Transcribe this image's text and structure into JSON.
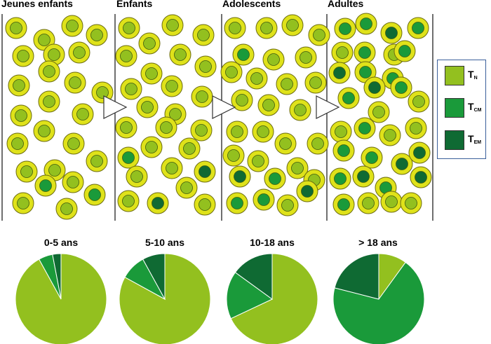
{
  "panels": [
    {
      "label": "Jeunes enfants"
    },
    {
      "label": "Enfants"
    },
    {
      "label": "Adolescents"
    },
    {
      "label": "Adultes"
    }
  ],
  "legend": [
    {
      "main": "T",
      "sub": "N",
      "color": "#93c01f"
    },
    {
      "main": "T",
      "sub": "CM",
      "color": "#1a9a3a"
    },
    {
      "main": "T",
      "sub": "EM",
      "color": "#0f6a33"
    }
  ],
  "chart_data": {
    "type": "pie",
    "categories": [
      "TN",
      "TCM",
      "TEM"
    ],
    "colors": {
      "TN": "#93c01f",
      "TCM": "#1a9a3a",
      "TEM": "#0f6a33",
      "cell_ring": "#dfe21a"
    },
    "pies": [
      {
        "title": "0-5 ans",
        "values": [
          92,
          5,
          3
        ]
      },
      {
        "title": "5-10 ans",
        "values": [
          83,
          9,
          8
        ]
      },
      {
        "title": "10-18 ans",
        "values": [
          68,
          17,
          15
        ]
      },
      {
        "title": "> 18 ans",
        "values": [
          10,
          69,
          21
        ]
      }
    ]
  }
}
